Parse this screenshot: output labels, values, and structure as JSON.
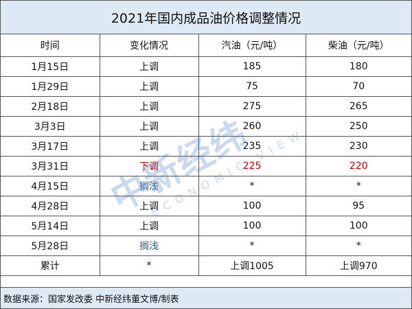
{
  "title": "2021年国内成品油价格调整情况",
  "headers": [
    "时间",
    "变化情况",
    "汽油（元/吨）",
    "柴油（元/吨）"
  ],
  "rows": [
    {
      "date": "1月15日",
      "change": "上调",
      "gasoline": "185",
      "diesel": "180"
    },
    {
      "date": "1月29日",
      "change": "上调",
      "gasoline": "75",
      "diesel": "70"
    },
    {
      "date": "2月18日",
      "change": "上调",
      "gasoline": "275",
      "diesel": "265"
    },
    {
      "date": "3月3日",
      "change": "上调",
      "gasoline": "260",
      "diesel": "250"
    },
    {
      "date": "3月17日",
      "change": "上调",
      "gasoline": "235",
      "diesel": "230"
    },
    {
      "date": "3月31日",
      "change": "下调",
      "gasoline": "225",
      "diesel": "220"
    },
    {
      "date": "4月15日",
      "change": "搁浅",
      "gasoline": "*",
      "diesel": "*"
    },
    {
      "date": "4月28日",
      "change": "上调",
      "gasoline": "100",
      "diesel": "95"
    },
    {
      "date": "5月14日",
      "change": "上调",
      "gasoline": "100",
      "diesel": "100"
    },
    {
      "date": "5月28日",
      "change": "搁浅",
      "gasoline": "*",
      "diesel": "*"
    }
  ],
  "total": {
    "label": "累计",
    "change": "*",
    "gasoline": "上调1005",
    "diesel": "上调970"
  },
  "footer": "数据来源：国家发改委  中新经纬董文博/制表",
  "watermark": {
    "cn": "中新经纬",
    "en": "ECONOMIC VIEW"
  },
  "colors": {
    "down": "#c00000",
    "stalled": "#2e5d8f",
    "header_bg": "#dde9f5"
  }
}
